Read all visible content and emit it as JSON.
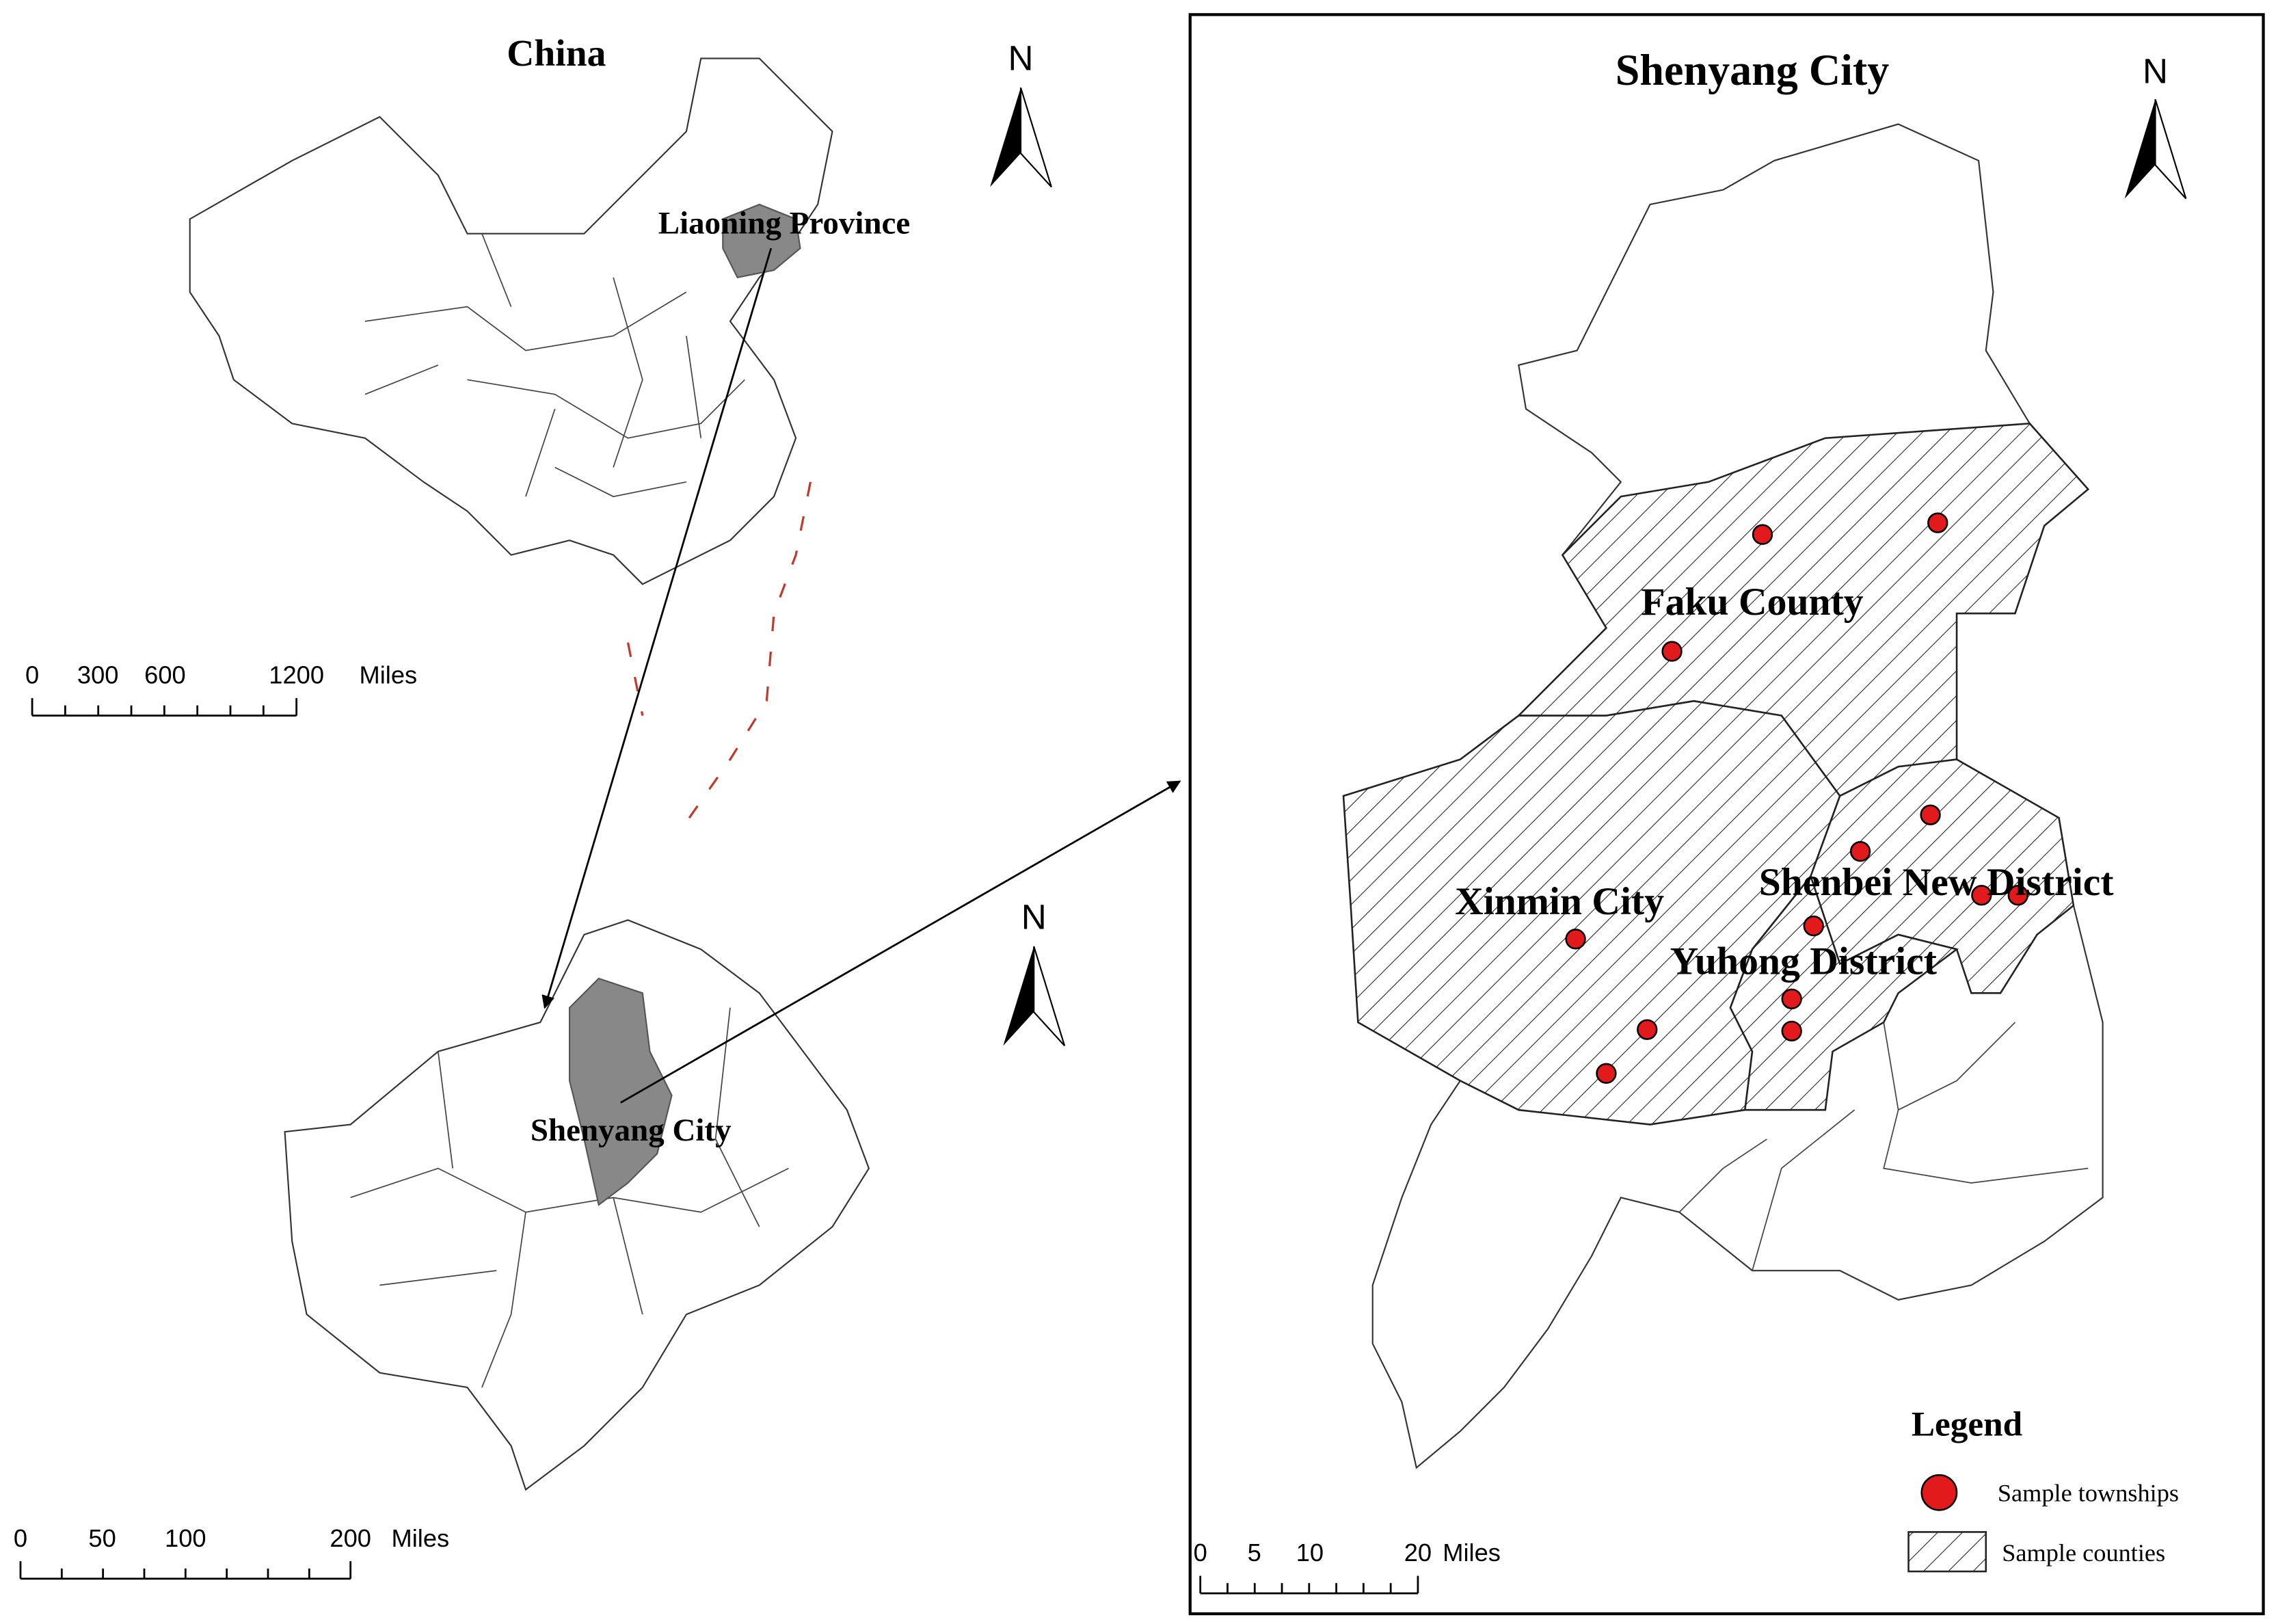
{
  "china_map": {
    "title": "China",
    "labels": [
      "Liaoning Province"
    ],
    "north": "N",
    "scale_bar": {
      "ticks": [
        "0",
        "300",
        "600",
        "1200"
      ],
      "unit": "Miles"
    }
  },
  "liaoning_map": {
    "labels": [
      "Shenyang City"
    ],
    "north": "N",
    "scale_bar": {
      "ticks": [
        "0",
        "50",
        "100",
        "200"
      ],
      "unit": "Miles"
    }
  },
  "shenyang_map": {
    "title": "Shenyang City",
    "north": "N",
    "labels": [
      "Faku County",
      "Xinmin City",
      "Shenbei New District",
      "Yuhong District"
    ],
    "scale_bar": {
      "ticks": [
        "0",
        "5",
        "10",
        "20"
      ],
      "unit": "Miles"
    },
    "legend": {
      "title": "Legend",
      "items": [
        "Sample townships",
        "Sample counties"
      ]
    }
  }
}
